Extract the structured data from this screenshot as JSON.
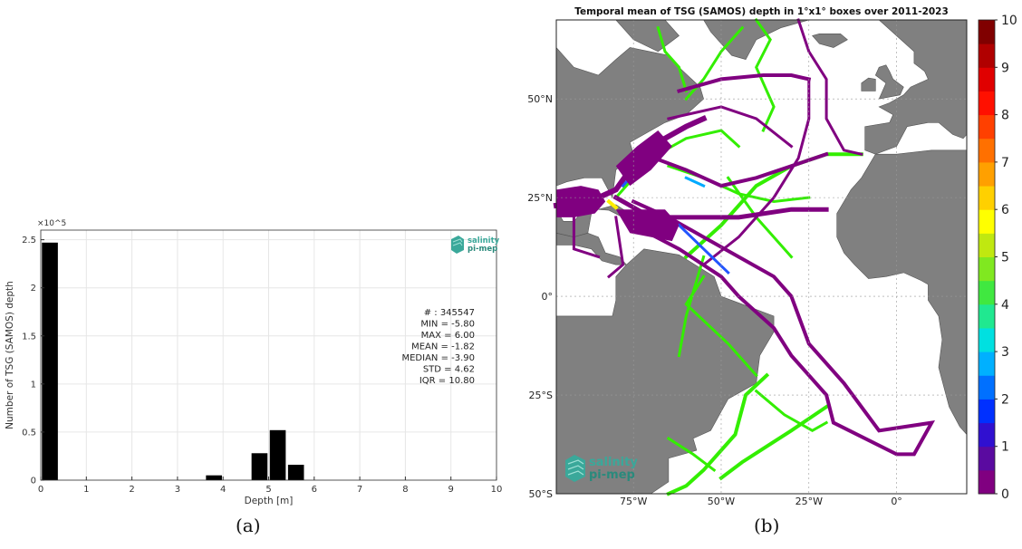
{
  "panel_a": {
    "label": "(a)",
    "logo_text": [
      "salinity",
      "pi-mep"
    ],
    "stats": [
      "# : 345547",
      "MIN = -5.80",
      "MAX =  6.00",
      "MEAN = -1.82",
      "MEDIAN = -3.90",
      "STD = 4.62",
      "IQR = 10.80"
    ]
  },
  "panel_b": {
    "label": "(b)",
    "logo_text": [
      "salinity",
      "pi-mep"
    ]
  },
  "chart_data": [
    {
      "type": "bar",
      "xlabel": "Depth [m]",
      "ylabel": "Number of TSG (SAMOS) depth",
      "y_multiplier": "×10^5",
      "xlim": [
        0,
        10
      ],
      "ylim": [
        0,
        2.6
      ],
      "xticks": [
        0,
        1,
        2,
        3,
        4,
        5,
        6,
        7,
        8,
        9,
        10
      ],
      "yticks": [
        0,
        0.5,
        1,
        1.5,
        2,
        2.5
      ],
      "ytick_labels": [
        "0",
        "0.5",
        "1",
        "1.5",
        "2",
        "2.5"
      ],
      "bin_width": 0.35,
      "x": [
        0.2,
        3.8,
        4.8,
        5.2,
        5.6
      ],
      "values": [
        2.47,
        0.05,
        0.28,
        0.52,
        0.16
      ],
      "grid": true
    },
    {
      "type": "heatmap",
      "title": "Temporal mean of TSG (SAMOS) depth in 1°x1° boxes over 2011-2023",
      "x_ticks": [
        "75°W",
        "50°W",
        "25°W",
        "0°"
      ],
      "x_tick_lon": [
        -75,
        -50,
        -25,
        0
      ],
      "y_ticks": [
        "50°N",
        "25°N",
        "0°",
        "25°S",
        "50°S"
      ],
      "y_tick_lat": [
        50,
        25,
        0,
        -25,
        -50
      ],
      "lon_range": [
        -97,
        20
      ],
      "lat_range": [
        -50,
        70
      ],
      "colorbar": {
        "range": [
          0,
          10
        ],
        "ticks": [
          "0",
          "1",
          "2",
          "3",
          "4",
          "5",
          "6",
          "7",
          "8",
          "9",
          "10"
        ],
        "colors": [
          "#800080",
          "#5a0aa0",
          "#3010d0",
          "#0030ff",
          "#0070ff",
          "#00b0ff",
          "#00e0e0",
          "#20e890",
          "#40e840",
          "#80e820",
          "#c0e810",
          "#ffff00",
          "#ffd000",
          "#ffa000",
          "#ff7000",
          "#ff4000",
          "#ff1000",
          "#e00000",
          "#b00000",
          "#800000"
        ]
      },
      "grid": true
    }
  ]
}
